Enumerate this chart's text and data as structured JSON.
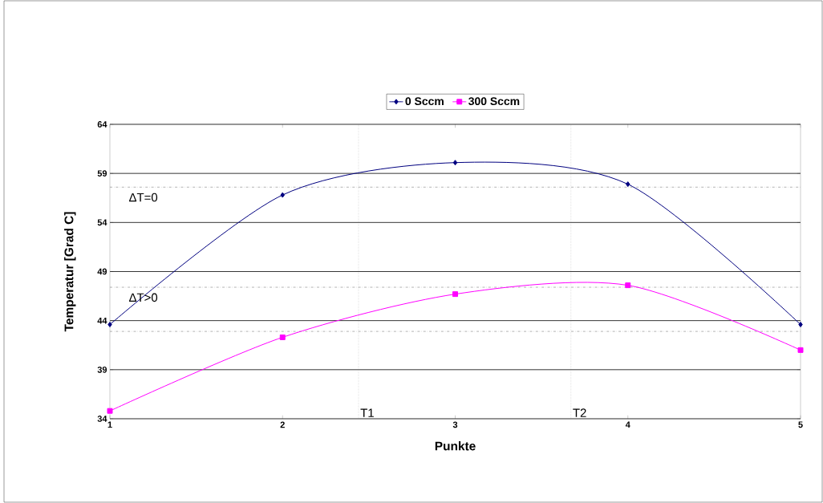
{
  "chart_data": {
    "type": "line",
    "xlabel": "Punkte",
    "ylabel": "Temperatur [Grad C]",
    "x": [
      1,
      2,
      3,
      4,
      5
    ],
    "series": [
      {
        "name": "0 Sccm",
        "color": "#000080",
        "marker": "diamond",
        "values": [
          43.6,
          56.8,
          60.1,
          57.9,
          43.6
        ]
      },
      {
        "name": "300 Sccm",
        "color": "#ff00ff",
        "marker": "square",
        "values": [
          34.8,
          42.3,
          46.7,
          47.6,
          41.0
        ]
      }
    ],
    "xlim": [
      1,
      5
    ],
    "xticks": [
      1,
      2,
      3,
      4,
      5
    ],
    "ylim": [
      34,
      64
    ],
    "yticks": [
      34,
      39,
      44,
      49,
      54,
      59,
      64
    ],
    "grid": "y",
    "legend": "top",
    "ref_lines": [
      {
        "axis": "x",
        "value": 2.44,
        "label": "T1",
        "color": "#808080",
        "line_style": "dotted"
      },
      {
        "axis": "x",
        "value": 3.67,
        "label": "T2",
        "color": "#808080",
        "line_style": "dotted"
      },
      {
        "axis": "y",
        "value": 57.6,
        "color": "#404040",
        "line_style": "dashdot"
      },
      {
        "axis": "y",
        "value": 47.4,
        "color": "#404040",
        "line_style": "dashdot"
      },
      {
        "axis": "y",
        "value": 42.9,
        "color": "#404040",
        "line_style": "dashdot"
      }
    ],
    "annotations": [
      "ΔT=0",
      "ΔT>0"
    ]
  }
}
